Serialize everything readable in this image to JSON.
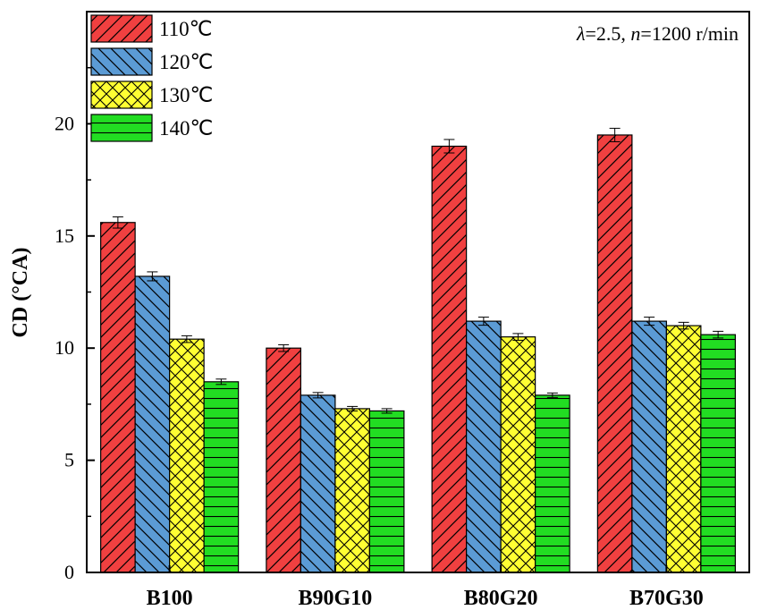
{
  "chart_data": {
    "type": "bar",
    "categories": [
      "B100",
      "B90G10",
      "B80G20",
      "B70G30"
    ],
    "series": [
      {
        "name": "110℃",
        "color": "#f04040",
        "pattern": "diag-forward",
        "values": [
          15.6,
          10.0,
          19.0,
          19.5
        ],
        "errors": [
          0.25,
          0.15,
          0.3,
          0.3
        ]
      },
      {
        "name": "120℃",
        "color": "#5b9bd5",
        "pattern": "diag-back",
        "values": [
          13.2,
          7.9,
          11.2,
          11.2
        ],
        "errors": [
          0.2,
          0.12,
          0.18,
          0.18
        ]
      },
      {
        "name": "130℃",
        "color": "#ffff33",
        "pattern": "crosshatch",
        "values": [
          10.4,
          7.3,
          10.5,
          11.0
        ],
        "errors": [
          0.15,
          0.1,
          0.15,
          0.15
        ]
      },
      {
        "name": "140℃",
        "color": "#22dd22",
        "pattern": "horizontal",
        "values": [
          8.5,
          7.2,
          7.9,
          10.6
        ],
        "errors": [
          0.12,
          0.1,
          0.1,
          0.15
        ]
      }
    ],
    "ylabel": "CD (°CA)",
    "xlabel": "",
    "ylim": [
      0,
      25
    ],
    "yticks": [
      "0",
      "5",
      "10",
      "15",
      "20"
    ],
    "ytick_values": [
      0,
      5,
      10,
      15,
      20
    ],
    "legend_position": "top-left",
    "grid": false,
    "annotation": {
      "lambda_sym": "λ",
      "lambda_val": "=2.5, ",
      "n_sym": "n",
      "n_val": "=1200 r/min"
    }
  }
}
